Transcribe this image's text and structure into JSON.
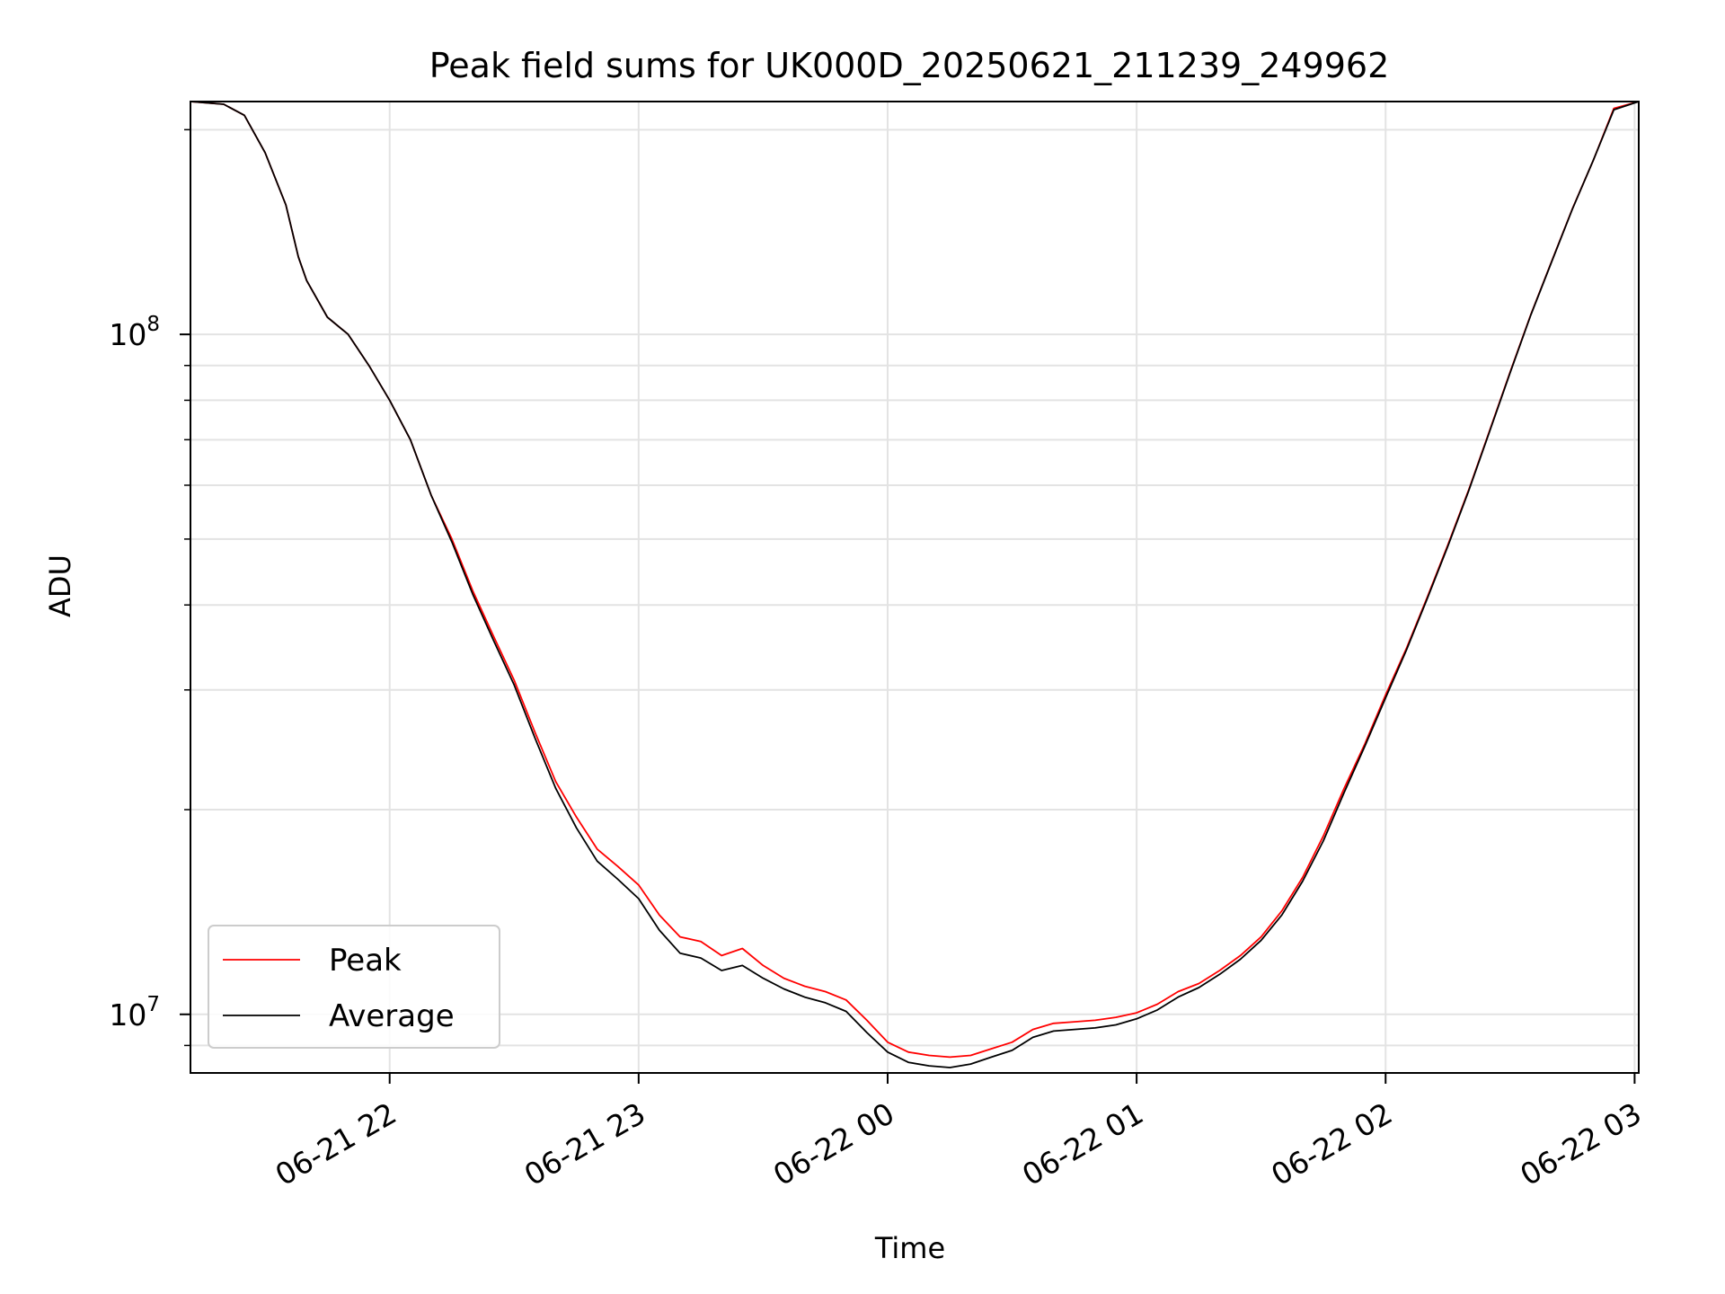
{
  "chart_data": {
    "type": "line",
    "title": "Peak field sums for UK000D_20250621_211239_249962",
    "xlabel": "Time",
    "ylabel": "ADU",
    "yscale": "log",
    "xlim": [
      "2025-06-21 21:12",
      "2025-06-22 03:01"
    ],
    "ylim": [
      8200000,
      220000000
    ],
    "grid": true,
    "legend_position": "lower-left",
    "x_ticks": [
      {
        "time": "2025-06-21 22:00",
        "label": "06-21 22"
      },
      {
        "time": "2025-06-21 23:00",
        "label": "06-21 23"
      },
      {
        "time": "2025-06-22 00:00",
        "label": "06-22 00"
      },
      {
        "time": "2025-06-22 01:00",
        "label": "06-22 01"
      },
      {
        "time": "2025-06-22 02:00",
        "label": "06-22 02"
      },
      {
        "time": "2025-06-22 03:00",
        "label": "06-22 03"
      }
    ],
    "y_ticks": [
      {
        "value": 10000000,
        "base": "10",
        "exp": "7"
      },
      {
        "value": 100000000,
        "base": "10",
        "exp": "8"
      }
    ],
    "x": [
      "2025-06-21 21:12",
      "2025-06-21 21:20",
      "2025-06-21 21:25",
      "2025-06-21 21:30",
      "2025-06-21 21:35",
      "2025-06-21 21:38",
      "2025-06-21 21:40",
      "2025-06-21 21:45",
      "2025-06-21 21:50",
      "2025-06-21 21:55",
      "2025-06-21 22:00",
      "2025-06-21 22:05",
      "2025-06-21 22:10",
      "2025-06-21 22:15",
      "2025-06-21 22:20",
      "2025-06-21 22:25",
      "2025-06-21 22:30",
      "2025-06-21 22:35",
      "2025-06-21 22:40",
      "2025-06-21 22:45",
      "2025-06-21 22:50",
      "2025-06-21 22:55",
      "2025-06-21 23:00",
      "2025-06-21 23:05",
      "2025-06-21 23:10",
      "2025-06-21 23:15",
      "2025-06-21 23:20",
      "2025-06-21 23:25",
      "2025-06-21 23:30",
      "2025-06-21 23:35",
      "2025-06-21 23:40",
      "2025-06-21 23:45",
      "2025-06-21 23:50",
      "2025-06-21 23:55",
      "2025-06-22 00:00",
      "2025-06-22 00:05",
      "2025-06-22 00:10",
      "2025-06-22 00:15",
      "2025-06-22 00:20",
      "2025-06-22 00:25",
      "2025-06-22 00:30",
      "2025-06-22 00:35",
      "2025-06-22 00:40",
      "2025-06-22 00:45",
      "2025-06-22 00:50",
      "2025-06-22 00:55",
      "2025-06-22 01:00",
      "2025-06-22 01:05",
      "2025-06-22 01:10",
      "2025-06-22 01:15",
      "2025-06-22 01:20",
      "2025-06-22 01:25",
      "2025-06-22 01:30",
      "2025-06-22 01:35",
      "2025-06-22 01:40",
      "2025-06-22 01:45",
      "2025-06-22 01:50",
      "2025-06-22 01:55",
      "2025-06-22 02:00",
      "2025-06-22 02:05",
      "2025-06-22 02:10",
      "2025-06-22 02:15",
      "2025-06-22 02:20",
      "2025-06-22 02:25",
      "2025-06-22 02:30",
      "2025-06-22 02:35",
      "2025-06-22 02:40",
      "2025-06-22 02:45",
      "2025-06-22 02:50",
      "2025-06-22 02:55",
      "2025-06-22 03:01"
    ],
    "series": [
      {
        "name": "Peak",
        "color": "#ff0000",
        "values": [
          220000000,
          218000000,
          210000000,
          185000000,
          155000000,
          130000000,
          120000000,
          106000000,
          100000000,
          90000000,
          80000000,
          70000000,
          58000000,
          50000000,
          42000000,
          36000000,
          31000000,
          26000000,
          22000000,
          19500000,
          17500000,
          16500000,
          15500000,
          14000000,
          13000000,
          12800000,
          12200000,
          12500000,
          11800000,
          11300000,
          11000000,
          10800000,
          10500000,
          9800000,
          9100000,
          8800000,
          8700000,
          8650000,
          8700000,
          8900000,
          9100000,
          9500000,
          9700000,
          9750000,
          9800000,
          9900000,
          10050000,
          10350000,
          10800000,
          11100000,
          11600000,
          12200000,
          13000000,
          14200000,
          15900000,
          18300000,
          21500000,
          25000000,
          29500000,
          34500000,
          41000000,
          49000000,
          59000000,
          72000000,
          88000000,
          107000000,
          128000000,
          153000000,
          180000000,
          215000000,
          220000000
        ]
      },
      {
        "name": "Average",
        "color": "#000000",
        "values": [
          220000000,
          218000000,
          210000000,
          185000000,
          155000000,
          130000000,
          120000000,
          106000000,
          100000000,
          90000000,
          80000000,
          70000000,
          58000000,
          49500000,
          41500000,
          35500000,
          30500000,
          25500000,
          21500000,
          18800000,
          16800000,
          15800000,
          14800000,
          13300000,
          12300000,
          12100000,
          11600000,
          11800000,
          11300000,
          10900000,
          10600000,
          10400000,
          10100000,
          9400000,
          8800000,
          8500000,
          8400000,
          8350000,
          8450000,
          8650000,
          8850000,
          9250000,
          9450000,
          9500000,
          9550000,
          9650000,
          9850000,
          10150000,
          10600000,
          10950000,
          11450000,
          12050000,
          12850000,
          14000000,
          15700000,
          18000000,
          21200000,
          24800000,
          29200000,
          34300000,
          40800000,
          48800000,
          58800000,
          71800000,
          87800000,
          106800000,
          127800000,
          152800000,
          180000000,
          214000000,
          220000000
        ]
      }
    ]
  }
}
